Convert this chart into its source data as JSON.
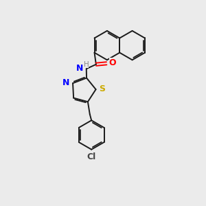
{
  "background_color": "#ebebeb",
  "bond_color": "#1a1a1a",
  "atom_colors": {
    "N": "#0000ff",
    "O": "#ff0000",
    "S": "#ccaa00",
    "Cl": "#444444",
    "H": "#888888",
    "C": "#1a1a1a"
  },
  "figsize": [
    3.0,
    3.0
  ],
  "dpi": 100
}
